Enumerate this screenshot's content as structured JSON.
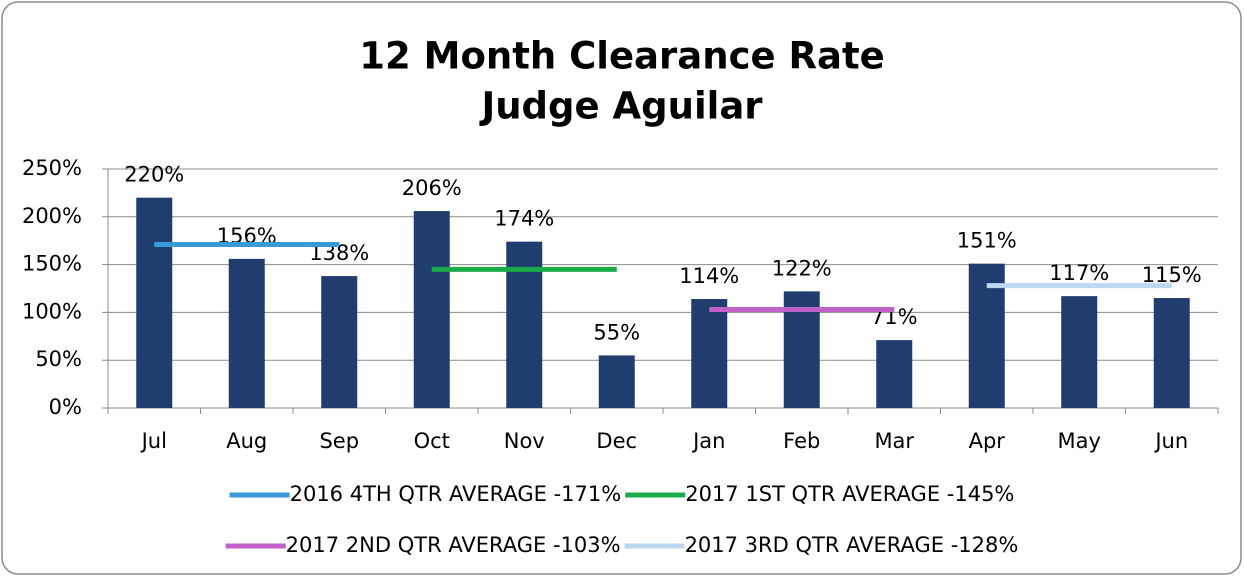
{
  "chart_data": {
    "type": "bar",
    "title": "12 Month Clearance Rate",
    "subtitle": "Judge Aguilar",
    "categories": [
      "Jul",
      "Aug",
      "Sep",
      "Oct",
      "Nov",
      "Dec",
      "Jan",
      "Feb",
      "Mar",
      "Apr",
      "May",
      "Jun"
    ],
    "values": [
      220,
      156,
      138,
      206,
      174,
      55,
      114,
      122,
      71,
      151,
      117,
      115
    ],
    "value_labels": [
      "220%",
      "156%",
      "138%",
      "206%",
      "174%",
      "55%",
      "114%",
      "122%",
      "71%",
      "151%",
      "117%",
      "115%"
    ],
    "color": "#1f3d6e",
    "series": [
      {
        "name": "2016 4TH QTR AVERAGE -171%",
        "color": "#3a9ad9",
        "values": [
          171,
          171,
          171,
          null,
          null,
          null,
          null,
          null,
          null,
          null,
          null,
          null
        ]
      },
      {
        "name": "2017 1ST QTR AVERAGE -145%",
        "color": "#1aab4a",
        "values": [
          null,
          null,
          null,
          145,
          145,
          145,
          null,
          null,
          null,
          null,
          null,
          null
        ]
      },
      {
        "name": "2017 2ND QTR AVERAGE -103%",
        "color": "#c060c8",
        "values": [
          null,
          null,
          null,
          null,
          null,
          null,
          103,
          103,
          103,
          null,
          null,
          null
        ]
      },
      {
        "name": "2017 3RD QTR AVERAGE -128%",
        "color": "#bcd7f0",
        "values": [
          null,
          null,
          null,
          null,
          null,
          null,
          null,
          null,
          null,
          128,
          128,
          128
        ]
      }
    ],
    "ylim": [
      0,
      250
    ],
    "yticks": [
      {
        "value": 0,
        "label": "0%"
      },
      {
        "value": 50,
        "label": "50%"
      },
      {
        "value": 100,
        "label": "100%"
      },
      {
        "value": 150,
        "label": "150%"
      },
      {
        "value": 200,
        "label": "200%"
      },
      {
        "value": 250,
        "label": "250%"
      }
    ],
    "grid": true,
    "legend": "bottom"
  }
}
